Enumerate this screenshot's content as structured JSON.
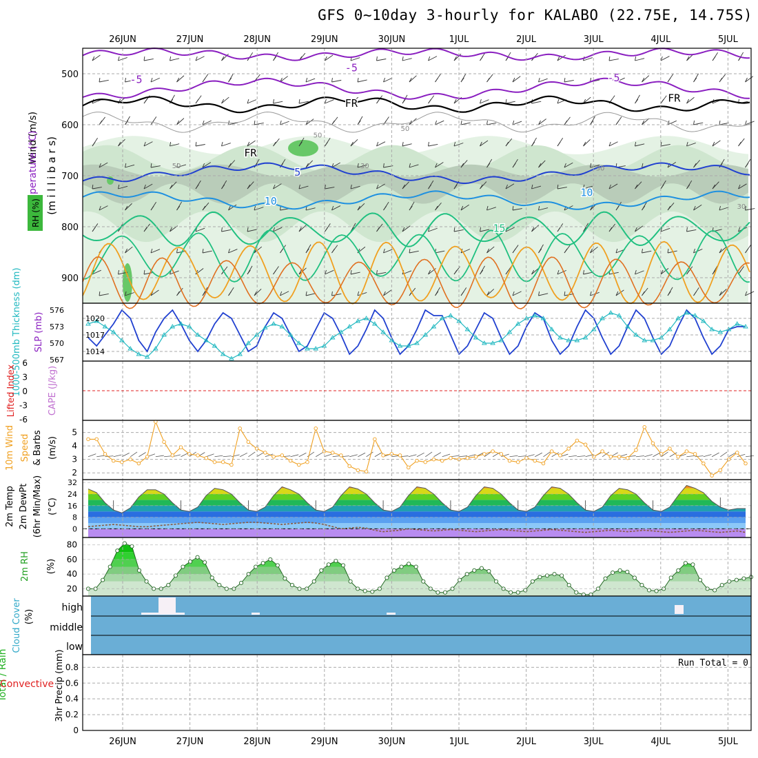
{
  "title": "GFS 0~10day 3-hourly for KALABO (22.75E, 14.75S)",
  "dates": [
    "26JUN",
    "27JUN",
    "28JUN",
    "29JUN",
    "30JUN",
    "1JUL",
    "2JUL",
    "3JUL",
    "4JUL",
    "5JUL"
  ],
  "run_total": "Run Total = 0",
  "colors": {
    "grid": "#aaaaaa",
    "purple": "#8a1fc0",
    "blue": "#2040d0",
    "lightblue": "#1e90e0",
    "teal": "#20c080",
    "cyan": "#20b8c0",
    "orange": "#f0a020",
    "darkorange": "#e07020",
    "rh_green": "#2cc82c",
    "cloud": "#6aaed6",
    "red": "#e02020"
  },
  "chart_data": [
    {
      "id": "upper-air",
      "type": "contour",
      "ylabel_parts": [
        "Wind (m/s)",
        "Temperature (°C)",
        "(m i l l i b a r s)"
      ],
      "rh_legend": "RH (%)",
      "ylim": [
        450,
        950
      ],
      "yticks": [
        500,
        600,
        700,
        800,
        900
      ],
      "isotherm_labels": [
        {
          "text": "-5",
          "day": 0.2,
          "p": 518,
          "level": -5
        },
        {
          "text": "-5",
          "day": 3.4,
          "p": 495,
          "level": -5
        },
        {
          "text": "-5",
          "day": 7.3,
          "p": 515,
          "level": -5
        },
        {
          "text": "5",
          "day": 2.6,
          "p": 700,
          "level": 5
        },
        {
          "text": "10",
          "day": 2.2,
          "p": 757,
          "level": 10
        },
        {
          "text": "10",
          "day": 6.9,
          "p": 740,
          "level": 10
        },
        {
          "text": "15",
          "day": 5.6,
          "p": 810,
          "level": 15
        },
        {
          "text": "FR",
          "day": 3.4,
          "p": 565,
          "level": 0
        },
        {
          "text": "FR",
          "day": 1.9,
          "p": 662,
          "level": 0
        },
        {
          "text": "FR",
          "day": 8.2,
          "p": 555,
          "level": 0
        }
      ],
      "rh_labels": [
        {
          "text": "30",
          "day": 3.6,
          "p": 685
        },
        {
          "text": "30",
          "day": 7.1,
          "p": 690
        },
        {
          "text": "30",
          "day": 9.2,
          "p": 765
        },
        {
          "text": "50",
          "day": 0.8,
          "p": 685
        },
        {
          "text": "50",
          "day": 2.9,
          "p": 625
        },
        {
          "text": "50",
          "day": 4.2,
          "p": 612
        }
      ]
    },
    {
      "id": "slp-thickness",
      "type": "line",
      "ylabel_left": "1000-500mb Thickness (dm)",
      "ylabel_right": "SLP (mb)",
      "left_ticks": [
        "576",
        "573",
        "570",
        "567"
      ],
      "right_ticks": [
        "1020",
        "1017",
        "1014"
      ],
      "series": [
        {
          "name": "SLP (mb)",
          "values": [
            1016.5,
            1015,
            1017,
            1019,
            1021.5,
            1020,
            1016,
            1014,
            1017.5,
            1020,
            1021.5,
            1019,
            1016,
            1014,
            1016,
            1019,
            1021,
            1020,
            1017,
            1014,
            1015,
            1018.5,
            1021,
            1020,
            1017,
            1014,
            1015,
            1018,
            1021,
            1020,
            1017,
            1013.5,
            1015,
            1018,
            1021.5,
            1020,
            1016.5,
            1013.5,
            1015,
            1018,
            1021.5,
            1020.5,
            1020.5,
            1017,
            1013.5,
            1015,
            1018,
            1021,
            1020,
            1016.5,
            1013.5,
            1015,
            1018.5,
            1021,
            1020,
            1016,
            1013.5,
            1015,
            1018.5,
            1021.5,
            1020,
            1016.5,
            1013.5,
            1015,
            1018.5,
            1021.5,
            1020,
            1016.5,
            1013.5,
            1015,
            1018.5,
            1021.5,
            1020,
            1016.5,
            1013.5,
            1015,
            1018,
            1018.5,
            1018.5
          ]
        },
        {
          "name": "1000-500mb Thickness (dm)",
          "values": [
            573.5,
            574,
            573,
            572,
            570.5,
            569,
            568,
            567.5,
            569,
            571.5,
            573,
            573.5,
            573,
            571.5,
            570.5,
            569.5,
            568,
            567.2,
            568,
            570,
            571.5,
            572.8,
            573.5,
            573,
            571.5,
            570,
            569,
            569,
            569.5,
            571,
            572,
            573,
            574,
            574.5,
            573.5,
            572,
            570.5,
            569.5,
            569.5,
            570,
            571.5,
            573,
            574.5,
            575,
            574,
            572.5,
            571,
            570,
            570,
            570.5,
            572,
            573.5,
            574.5,
            575,
            574.5,
            572.5,
            571,
            570.5,
            570.5,
            571,
            572.5,
            574.5,
            575.5,
            575,
            573,
            571.5,
            570.5,
            570.5,
            571,
            572.5,
            574.5,
            575.5,
            575,
            574,
            572.5,
            572,
            572.5,
            573.5,
            573
          ]
        }
      ]
    },
    {
      "id": "cape-li",
      "type": "line",
      "ylabel_left": "Lifted Index",
      "ylabel_right": "CAPE (J/kg)",
      "yticks": [
        "-6",
        "-3",
        "0",
        "3",
        "6"
      ],
      "ylim": [
        6,
        -6
      ],
      "series": [
        {
          "name": "Lifted Index",
          "values": []
        }
      ]
    },
    {
      "id": "wind10m",
      "type": "line",
      "ylabel_parts": [
        "10m Wind",
        "Speed",
        "& Barbs",
        "(m/s)"
      ],
      "ylim": [
        1.5,
        5.9
      ],
      "yticks": [
        2,
        3,
        4,
        5
      ],
      "series": [
        {
          "name": "10m Wind Speed",
          "values": [
            4.5,
            4.5,
            3.4,
            2.9,
            2.8,
            3.0,
            2.7,
            3.2,
            5.8,
            4.3,
            3.3,
            3.9,
            3.4,
            3.3,
            3.1,
            2.8,
            2.8,
            2.6,
            5.3,
            4.3,
            3.8,
            3.5,
            3.2,
            3.3,
            2.9,
            2.6,
            2.8,
            5.3,
            3.6,
            3.5,
            3.3,
            2.5,
            2.2,
            2.1,
            4.5,
            3.3,
            3.4,
            3.3,
            2.4,
            2.9,
            2.8,
            3.0,
            2.9,
            3.1,
            3.0,
            3.1,
            3.2,
            3.4,
            3.6,
            3.4,
            2.9,
            2.8,
            3.1,
            2.9,
            2.7,
            3.6,
            3.3,
            3.8,
            4.4,
            4.1,
            3.2,
            3.6,
            3.2,
            3.2,
            3.1,
            3.7,
            5.4,
            4.2,
            3.4,
            3.8,
            3.2,
            3.6,
            3.4,
            2.7,
            1.8,
            2.2,
            3.0,
            3.5,
            2.7
          ]
        }
      ]
    },
    {
      "id": "temp2m",
      "type": "area",
      "ylabel_parts": [
        "2m Temp",
        "2m DewPt",
        "(6hr Min/Max)",
        "(°C)"
      ],
      "ylim": [
        -6,
        34
      ],
      "yticks": [
        0,
        8,
        16,
        24,
        32
      ],
      "series": [
        {
          "name": "2m Temp",
          "values": [
            27.5,
            25,
            18,
            13,
            11,
            14.5,
            22,
            27,
            27,
            24,
            18,
            13,
            12,
            15,
            23,
            28,
            27,
            24,
            18,
            13,
            12,
            15,
            23,
            29,
            27,
            24,
            18,
            13,
            12,
            15,
            23,
            29,
            27.5,
            24,
            18,
            13,
            12,
            15,
            23,
            29,
            28,
            24,
            18,
            13,
            12,
            15,
            23,
            29,
            28,
            24,
            18,
            13,
            12,
            15,
            23,
            29,
            28,
            24,
            18,
            13,
            12,
            15,
            23,
            28,
            27,
            24,
            18,
            13,
            12,
            15,
            23,
            30,
            28,
            25,
            19,
            15,
            13,
            14,
            14
          ]
        },
        {
          "name": "2m DewPt",
          "values": [
            1.5,
            2,
            2.5,
            3,
            2.5,
            2,
            1.5,
            1.5,
            2,
            2.5,
            3,
            3.5,
            4,
            4.5,
            4,
            3.5,
            3,
            3.5,
            4,
            4.5,
            4.5,
            4,
            3.5,
            3,
            3.5,
            4,
            4.5,
            4,
            3,
            1.5,
            0,
            0.5,
            1,
            0.5,
            -1,
            -2,
            -1.5,
            -1,
            0,
            -0.5,
            -1,
            -1.5,
            -1,
            -0.5,
            -1,
            -1.5,
            -2,
            -1.5,
            -1,
            -0.5,
            -1,
            -1.5,
            -2,
            -1.5,
            -1,
            -0.5,
            -1,
            -1.5,
            -2,
            -2.5,
            -2,
            -1.5,
            -1,
            -1.5,
            -2,
            -1.5,
            -1,
            -1.5,
            -2,
            -2.5,
            -2,
            -1.5,
            -1,
            -1.5,
            -2,
            -2.5,
            -2,
            -1.5,
            -2.5
          ]
        }
      ]
    },
    {
      "id": "rh2m",
      "type": "area",
      "ylabel_parts": [
        "2m RH",
        "(%)"
      ],
      "ylim": [
        10,
        90
      ],
      "yticks": [
        20,
        40,
        60,
        80
      ],
      "series": [
        {
          "name": "2m RH",
          "values": [
            20,
            20,
            32,
            50,
            72,
            82,
            78,
            45,
            30,
            20,
            20,
            25,
            38,
            50,
            57,
            63,
            56,
            35,
            25,
            20,
            20,
            28,
            40,
            50,
            55,
            60,
            52,
            34,
            25,
            20,
            20,
            30,
            45,
            53,
            58,
            52,
            30,
            20,
            17,
            16,
            20,
            35,
            45,
            50,
            54,
            50,
            30,
            20,
            15,
            15,
            20,
            32,
            40,
            45,
            48,
            44,
            30,
            20,
            15,
            15,
            18,
            30,
            36,
            38,
            40,
            38,
            25,
            15,
            12,
            12,
            20,
            34,
            42,
            45,
            43,
            35,
            25,
            18,
            17,
            20,
            35,
            45,
            55,
            53,
            32,
            20,
            18,
            25,
            30,
            32,
            34,
            36
          ]
        }
      ]
    },
    {
      "id": "cloud",
      "type": "bar",
      "ylabel_parts": [
        "Cloud Cover",
        "(%)"
      ],
      "categories": [
        "high",
        "middle",
        "low"
      ]
    },
    {
      "id": "precip",
      "type": "bar",
      "ylabel_parts": [
        "Total / Rain",
        "Convective",
        "3hr Precip (mm)"
      ],
      "ylim": [
        0,
        0.96
      ],
      "yticks": [
        "0",
        "0.2",
        "0.4",
        "0.6",
        "0.8"
      ],
      "values": []
    }
  ]
}
